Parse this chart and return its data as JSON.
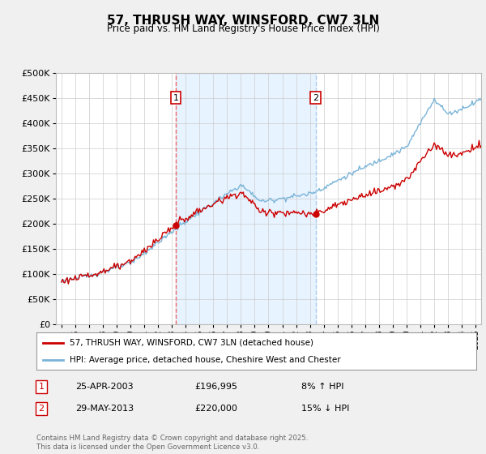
{
  "title": "57, THRUSH WAY, WINSFORD, CW7 3LN",
  "subtitle": "Price paid vs. HM Land Registry's House Price Index (HPI)",
  "legend_line1": "57, THRUSH WAY, WINSFORD, CW7 3LN (detached house)",
  "legend_line2": "HPI: Average price, detached house, Cheshire West and Chester",
  "sale1_date": "25-APR-2003",
  "sale1_price": "£196,995",
  "sale1_hpi": "8% ↑ HPI",
  "sale2_date": "29-MAY-2013",
  "sale2_price": "£220,000",
  "sale2_hpi": "15% ↓ HPI",
  "footer": "Contains HM Land Registry data © Crown copyright and database right 2025.\nThis data is licensed under the Open Government Licence v3.0.",
  "hpi_color": "#7ab4d8",
  "price_color": "#cc0000",
  "vline1_color": "#ee6666",
  "vline2_color": "#aaccee",
  "shade_color": "#ddeeff",
  "background_color": "#f0f0f0",
  "plot_bg_color": "#ffffff",
  "ylim": [
    0,
    500000
  ],
  "yticks": [
    0,
    50000,
    100000,
    150000,
    200000,
    250000,
    300000,
    350000,
    400000,
    450000,
    500000
  ],
  "sale1_x": 2003.29,
  "sale1_y": 196995,
  "sale2_x": 2013.41,
  "sale2_y": 220000,
  "xmin": 1994.6,
  "xmax": 2025.4
}
